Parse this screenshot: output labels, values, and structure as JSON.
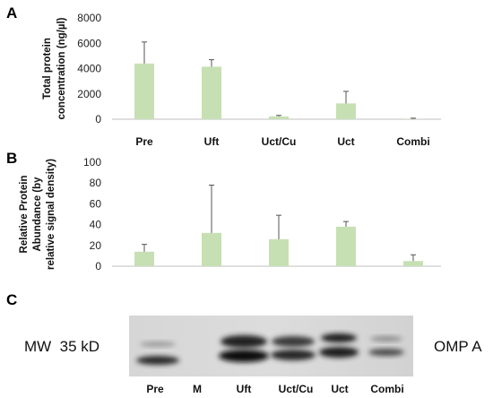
{
  "chart_data": [
    {
      "panel": "A",
      "type": "bar",
      "categories": [
        "Pre",
        "Uft",
        "Uct/Cu",
        "Uct",
        "Combi"
      ],
      "values": [
        4400,
        4150,
        220,
        1250,
        20
      ],
      "errors": [
        1700,
        550,
        80,
        950,
        60
      ],
      "ylabel": "Total protein concentration (ng/µl)",
      "ylim": [
        0,
        8000
      ],
      "yticks": [
        0,
        2000,
        4000,
        6000,
        8000
      ],
      "color": "#c6e0b4",
      "grid": false
    },
    {
      "panel": "B",
      "type": "bar",
      "categories": [
        "",
        "",
        "",
        "",
        ""
      ],
      "values": [
        14,
        32,
        26,
        38,
        5
      ],
      "errors": [
        7,
        46,
        23,
        5,
        6
      ],
      "ylabel": "Relative Protein Abundance (by relative signal density)",
      "ylim": [
        0,
        100
      ],
      "yticks": [
        0,
        20,
        40,
        60,
        80,
        100
      ],
      "color": "#c6e0b4",
      "grid": false
    }
  ],
  "blot": {
    "panel": "C",
    "left_label": "MW  35 kD",
    "right_label": "OMP A",
    "lanes": [
      "Pre",
      "M",
      "Uft",
      "Uct/Cu",
      "Uct",
      "Combi"
    ]
  }
}
